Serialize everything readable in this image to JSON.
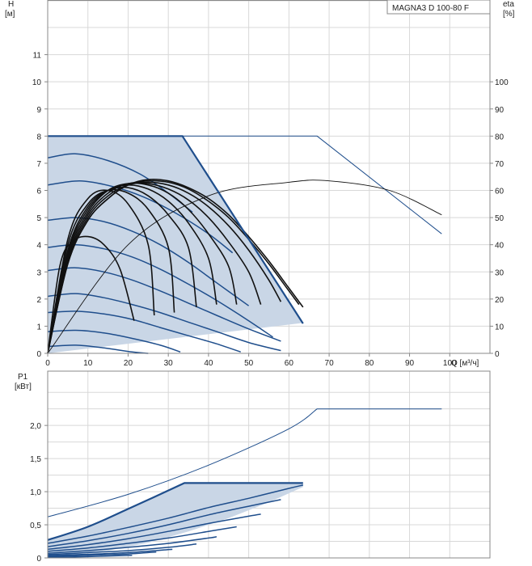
{
  "colors": {
    "grid": "#d8d8d8",
    "frame": "#888888",
    "blue_curve": "#1f4e8c",
    "envelope_fill": "#c9d6e6",
    "efficiency_curve": "#111111",
    "axis_text": "#222222"
  },
  "chart_data": [
    {
      "type": "line",
      "name": "head",
      "title": "MAGNA3 D 100-80 F",
      "xlabel": "Q [м³/ч]",
      "ylabel_line1": "H",
      "ylabel_line2": "[м]",
      "y2label_line1": "eta",
      "y2label_line2": "[%]",
      "xlim": [
        0,
        110
      ],
      "ylim": [
        0,
        12
      ],
      "y2lim": [
        0,
        120
      ],
      "grid": true,
      "x_ticks": [
        "0",
        "10",
        "20",
        "30",
        "40",
        "50",
        "60",
        "70",
        "80",
        "90",
        "100"
      ],
      "y_ticks": [
        "0",
        "1",
        "2",
        "3",
        "4",
        "5",
        "6",
        "7",
        "8",
        "9",
        "10",
        "11"
      ],
      "y2_ticks": [
        "0",
        "10",
        "20",
        "30",
        "40",
        "50",
        "60",
        "70",
        "80",
        "90",
        "100"
      ],
      "envelope": {
        "x": [
          0,
          33.5,
          63.5,
          63.5,
          0
        ],
        "y": [
          8,
          8,
          1.1,
          1.12,
          0
        ]
      },
      "series": [
        {
          "style": "single_pump_max",
          "x": [
            0,
            67,
            98
          ],
          "y": [
            8,
            8,
            4.4
          ]
        },
        {
          "style": "speed",
          "x": [
            0,
            7,
            15,
            23,
            30,
            36
          ],
          "y": [
            7.2,
            7.35,
            7.1,
            6.6,
            5.9,
            5.2
          ]
        },
        {
          "style": "speed",
          "x": [
            0,
            8,
            16,
            24,
            32,
            40,
            46
          ],
          "y": [
            6.2,
            6.35,
            6.15,
            5.75,
            5.15,
            4.4,
            3.7
          ]
        },
        {
          "style": "speed",
          "x": [
            0,
            7,
            14,
            21,
            28,
            35,
            42,
            50
          ],
          "y": [
            4.9,
            5.0,
            4.85,
            4.5,
            4.0,
            3.35,
            2.6,
            1.75
          ]
        },
        {
          "style": "speed",
          "x": [
            0,
            7,
            14,
            21,
            28,
            35,
            42,
            50,
            56
          ],
          "y": [
            3.9,
            4.0,
            3.85,
            3.55,
            3.1,
            2.55,
            1.95,
            1.2,
            0.6
          ]
        },
        {
          "style": "speed",
          "x": [
            0,
            7,
            14,
            21,
            28,
            35,
            42,
            50,
            58
          ],
          "y": [
            3.05,
            3.15,
            3.0,
            2.7,
            2.3,
            1.85,
            1.4,
            0.9,
            0.45
          ]
        },
        {
          "style": "speed",
          "x": [
            0,
            7,
            14,
            21,
            28,
            35,
            42,
            50,
            58
          ],
          "y": [
            2.1,
            2.2,
            2.05,
            1.8,
            1.5,
            1.15,
            0.8,
            0.4,
            0.1
          ]
        },
        {
          "style": "speed",
          "x": [
            0,
            7,
            14,
            21,
            28,
            35,
            42,
            48
          ],
          "y": [
            1.5,
            1.55,
            1.45,
            1.25,
            0.95,
            0.65,
            0.35,
            0.05
          ]
        },
        {
          "style": "speed",
          "x": [
            0,
            7,
            14,
            21,
            28,
            33
          ],
          "y": [
            0.8,
            0.85,
            0.75,
            0.55,
            0.3,
            0.05
          ]
        },
        {
          "style": "speed",
          "x": [
            0,
            7,
            14,
            21,
            25
          ],
          "y": [
            0.25,
            0.3,
            0.2,
            0.05,
            0
          ]
        },
        {
          "style": "efficiency_max",
          "x": [
            0,
            20,
            40,
            60,
            70,
            85,
            98
          ],
          "y2": [
            0,
            40,
            58,
            63,
            63.5,
            60,
            51
          ]
        },
        {
          "style": "efficiency",
          "x": [
            0,
            5,
            10,
            15,
            20,
            25,
            30,
            35,
            40,
            45,
            50,
            55,
            60,
            63.5
          ],
          "y2": [
            0,
            33,
            49,
            57,
            62,
            64,
            63.5,
            61,
            57,
            51,
            43,
            34,
            24,
            17
          ]
        },
        {
          "style": "efficiency",
          "x": [
            0,
            5,
            10,
            15,
            20,
            25,
            30,
            35,
            40,
            45,
            50,
            55,
            60,
            62.5
          ],
          "y2": [
            0,
            33,
            49,
            57,
            62,
            63.5,
            63,
            60.5,
            56,
            50,
            42,
            33,
            23,
            18
          ]
        },
        {
          "style": "efficiency",
          "x": [
            0,
            5,
            10,
            15,
            20,
            25,
            30,
            35,
            40,
            45,
            50,
            55,
            58
          ],
          "y2": [
            0,
            34,
            50,
            58,
            62,
            63,
            62,
            59,
            54,
            47,
            38,
            27,
            19
          ]
        },
        {
          "style": "efficiency",
          "x": [
            0,
            5,
            10,
            15,
            20,
            25,
            30,
            35,
            40,
            45,
            50,
            53
          ],
          "y2": [
            0,
            35,
            51,
            59,
            62.5,
            62.5,
            60.5,
            56.5,
            50,
            41,
            30,
            18
          ]
        },
        {
          "style": "efficiency",
          "x": [
            0,
            5,
            10,
            15,
            20,
            25,
            30,
            35,
            40,
            45,
            47
          ],
          "y2": [
            0,
            36,
            52,
            60,
            62.5,
            62,
            59,
            53,
            44,
            32,
            18
          ]
        },
        {
          "style": "efficiency",
          "x": [
            0,
            5,
            10,
            15,
            20,
            25,
            30,
            35,
            40,
            42
          ],
          "y2": [
            0,
            37,
            53,
            60,
            62,
            60.5,
            56,
            48,
            35,
            18
          ]
        },
        {
          "style": "efficiency",
          "x": [
            0,
            5,
            10,
            15,
            20,
            25,
            30,
            35,
            37
          ],
          "y2": [
            0,
            38,
            54,
            60,
            61,
            58,
            51,
            39,
            17
          ]
        },
        {
          "style": "efficiency",
          "x": [
            0,
            5,
            10,
            15,
            20,
            25,
            30,
            31.5
          ],
          "y2": [
            0,
            40,
            55,
            60,
            59,
            53,
            39,
            15
          ]
        },
        {
          "style": "efficiency",
          "x": [
            0,
            5,
            10,
            15,
            20,
            25,
            26.5
          ],
          "y2": [
            0,
            42,
            57,
            60,
            55,
            40,
            14
          ]
        },
        {
          "style": "efficiency",
          "x": [
            0,
            3,
            6,
            10,
            14,
            18,
            21.5
          ],
          "y2": [
            0,
            32,
            41,
            43,
            40,
            31,
            12
          ]
        }
      ]
    },
    {
      "type": "line",
      "name": "power",
      "ylabel_line1": "P1",
      "ylabel_line2": "[кВт]",
      "xlim": [
        0,
        110
      ],
      "ylim": [
        0,
        2.6
      ],
      "grid": true,
      "y_ticks": [
        "0",
        "0,5",
        "1,0",
        "1,5",
        "2,0"
      ],
      "envelope": {
        "x": [
          0,
          10,
          20,
          34,
          63.5,
          63.5,
          55,
          45,
          35,
          25,
          15,
          5,
          0
        ],
        "y": [
          0.27,
          0.47,
          0.74,
          1.13,
          1.13,
          1.07,
          0.84,
          0.6,
          0.4,
          0.23,
          0.11,
          0.04,
          0.02
        ]
      },
      "series": [
        {
          "style": "single_pump_max",
          "x": [
            0,
            20,
            40,
            60,
            67,
            98
          ],
          "y": [
            0.62,
            0.96,
            1.4,
            1.95,
            2.25,
            2.25
          ]
        },
        {
          "style": "speed",
          "x": [
            0,
            10,
            20,
            30,
            40,
            50,
            60,
            63.5
          ],
          "y": [
            0.22,
            0.33,
            0.46,
            0.6,
            0.76,
            0.9,
            1.05,
            1.1
          ]
        },
        {
          "style": "speed",
          "x": [
            0,
            10,
            20,
            30,
            40,
            50,
            58
          ],
          "y": [
            0.17,
            0.26,
            0.37,
            0.5,
            0.65,
            0.78,
            0.88
          ]
        },
        {
          "style": "speed",
          "x": [
            0,
            10,
            20,
            30,
            40,
            50,
            53
          ],
          "y": [
            0.13,
            0.2,
            0.29,
            0.4,
            0.52,
            0.63,
            0.66
          ]
        },
        {
          "style": "speed",
          "x": [
            0,
            10,
            20,
            30,
            40,
            47
          ],
          "y": [
            0.1,
            0.15,
            0.22,
            0.3,
            0.4,
            0.47
          ]
        },
        {
          "style": "speed",
          "x": [
            0,
            10,
            20,
            30,
            40,
            42
          ],
          "y": [
            0.07,
            0.11,
            0.16,
            0.22,
            0.3,
            0.32
          ]
        },
        {
          "style": "speed",
          "x": [
            0,
            10,
            20,
            30,
            37
          ],
          "y": [
            0.05,
            0.08,
            0.11,
            0.16,
            0.21
          ]
        },
        {
          "style": "speed",
          "x": [
            0,
            10,
            20,
            31
          ],
          "y": [
            0.035,
            0.055,
            0.08,
            0.13
          ]
        },
        {
          "style": "speed",
          "x": [
            0,
            10,
            20,
            27
          ],
          "y": [
            0.02,
            0.04,
            0.06,
            0.09
          ]
        },
        {
          "style": "speed",
          "x": [
            0,
            10,
            21
          ],
          "y": [
            0.01,
            0.02,
            0.04
          ]
        }
      ]
    }
  ]
}
